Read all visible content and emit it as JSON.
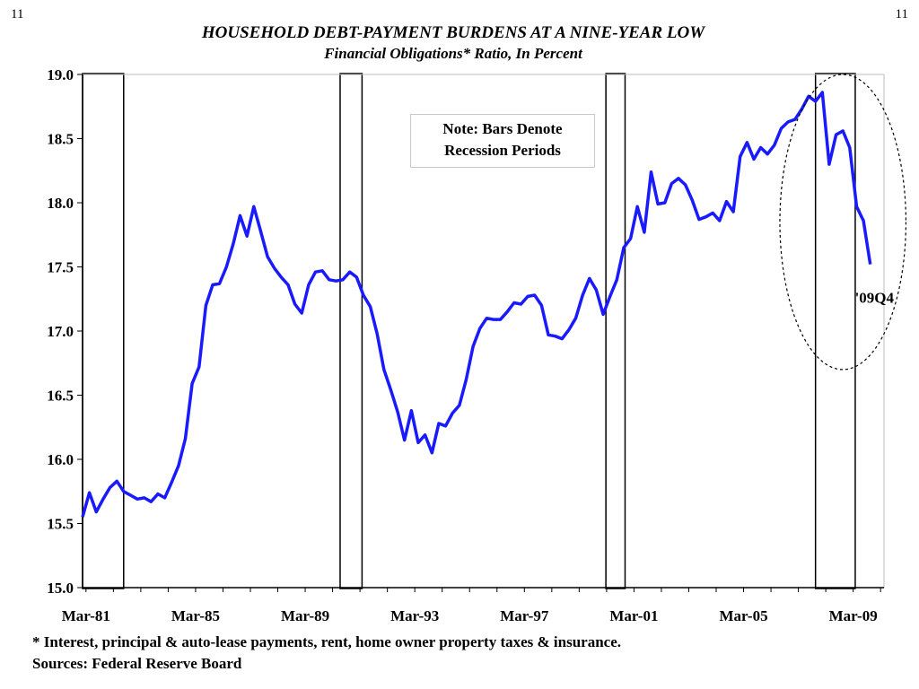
{
  "page_number_left": "11",
  "page_number_right": "11",
  "footnote": "* Interest, principal & auto-lease payments, rent, home owner property taxes & insurance.",
  "sources": "Sources: Federal Reserve Board",
  "note": {
    "line1": "Note: Bars Denote",
    "line2": "Recession Periods"
  },
  "colors": {
    "series": "#1a1aff",
    "axis": "#000000",
    "box": "#000000"
  },
  "chart_data": {
    "type": "line",
    "title": "HOUSEHOLD DEBT-PAYMENT BURDENS AT A NINE-YEAR LOW",
    "subtitle": "Financial Obligations* Ratio,  In Percent",
    "xlabel": "",
    "ylabel": "",
    "ylim": [
      15.0,
      19.0
    ],
    "xlim": [
      1981.0,
      2010.25
    ],
    "y_ticks": [
      "15.0",
      "15.5",
      "16.0",
      "16.5",
      "17.0",
      "17.5",
      "18.0",
      "18.5",
      "19.0"
    ],
    "x_ticks": [
      {
        "label": "Mar-81",
        "x": 1981.125
      },
      {
        "label": "Mar-85",
        "x": 1985.125
      },
      {
        "label": "Mar-89",
        "x": 1989.125
      },
      {
        "label": "Mar-93",
        "x": 1993.125
      },
      {
        "label": "Mar-97",
        "x": 1997.125
      },
      {
        "label": "Mar-01",
        "x": 2001.125
      },
      {
        "label": "Mar-05",
        "x": 2005.125
      },
      {
        "label": "Mar-09",
        "x": 2009.125
      }
    ],
    "recessions": [
      {
        "start": 1981.0,
        "end": 1982.5
      },
      {
        "start": 1990.4,
        "end": 1991.2
      },
      {
        "start": 2000.1,
        "end": 2000.8
      },
      {
        "start": 2007.75,
        "end": 2009.2
      }
    ],
    "annotation": {
      "text": "'09Q4",
      "x": 2009.9,
      "y": 17.5
    },
    "highlight_ellipse": {
      "center_x": 2008.75,
      "center_y": 17.85,
      "radius_x": 2.3,
      "radius_y": 1.15
    },
    "series": [
      {
        "x": [
          1981.0,
          1981.25,
          1981.5,
          1981.75,
          1982.0,
          1982.25,
          1982.5,
          1982.75,
          1983.0,
          1983.25,
          1983.5,
          1983.75,
          1984.0,
          1984.25,
          1984.5,
          1984.75,
          1985.0,
          1985.25,
          1985.5,
          1985.75,
          1986.0,
          1986.25,
          1986.5,
          1986.75,
          1987.0,
          1987.25,
          1987.5,
          1987.75,
          1988.0,
          1988.25,
          1988.5,
          1988.75,
          1989.0,
          1989.25,
          1989.5,
          1989.75,
          1990.0,
          1990.25,
          1990.5,
          1990.75,
          1991.0,
          1991.25,
          1991.5,
          1991.75,
          1992.0,
          1992.25,
          1992.5,
          1992.75,
          1993.0,
          1993.25,
          1993.5,
          1993.75,
          1994.0,
          1994.25,
          1994.5,
          1994.75,
          1995.0,
          1995.25,
          1995.5,
          1995.75,
          1996.0,
          1996.25,
          1996.5,
          1996.75,
          1997.0,
          1997.25,
          1997.5,
          1997.75,
          1998.0,
          1998.25,
          1998.5,
          1998.75,
          1999.0,
          1999.25,
          1999.5,
          1999.75,
          2000.0,
          2000.25,
          2000.5,
          2000.75,
          2001.0,
          2001.25,
          2001.5,
          2001.75,
          2002.0,
          2002.25,
          2002.5,
          2002.75,
          2003.0,
          2003.25,
          2003.5,
          2003.75,
          2004.0,
          2004.25,
          2004.5,
          2004.75,
          2005.0,
          2005.25,
          2005.5,
          2005.75,
          2006.0,
          2006.25,
          2006.5,
          2006.75,
          2007.0,
          2007.25,
          2007.5,
          2007.75,
          2008.0,
          2008.25,
          2008.5,
          2008.75,
          2009.0,
          2009.25,
          2009.5,
          2009.75
        ],
        "values": [
          15.55,
          15.74,
          15.59,
          15.69,
          15.78,
          15.83,
          15.75,
          15.72,
          15.69,
          15.7,
          15.67,
          15.73,
          15.7,
          15.82,
          15.95,
          16.16,
          16.59,
          16.72,
          17.2,
          17.36,
          17.37,
          17.5,
          17.68,
          17.9,
          17.74,
          17.97,
          17.78,
          17.58,
          17.49,
          17.42,
          17.36,
          17.21,
          17.14,
          17.36,
          17.46,
          17.47,
          17.4,
          17.39,
          17.4,
          17.46,
          17.42,
          17.28,
          17.19,
          16.98,
          16.7,
          16.54,
          16.37,
          16.15,
          16.38,
          16.13,
          16.19,
          16.05,
          16.28,
          16.26,
          16.36,
          16.42,
          16.62,
          16.88,
          17.02,
          17.1,
          17.09,
          17.09,
          17.15,
          17.22,
          17.21,
          17.27,
          17.28,
          17.2,
          16.97,
          16.96,
          16.94,
          17.01,
          17.1,
          17.28,
          17.41,
          17.32,
          17.13,
          17.27,
          17.4,
          17.65,
          17.72,
          17.97,
          17.77,
          18.24,
          17.99,
          18.0,
          18.15,
          18.19,
          18.14,
          18.02,
          17.87,
          17.89,
          17.92,
          17.86,
          18.01,
          17.93,
          18.36,
          18.47,
          18.34,
          18.43,
          18.38,
          18.45,
          18.58,
          18.63,
          18.65,
          18.73,
          18.83,
          18.79,
          18.86,
          18.3,
          18.53,
          18.56,
          18.43,
          17.97,
          17.86,
          17.52
        ]
      }
    ]
  }
}
